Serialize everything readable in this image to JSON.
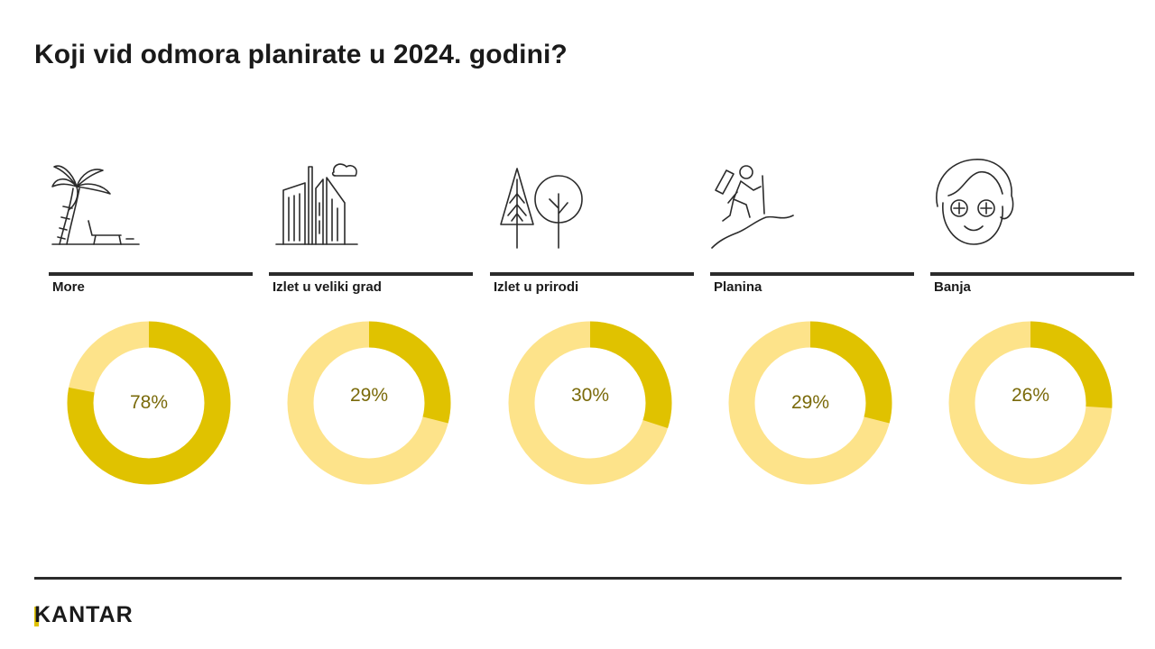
{
  "title": "Koji vid odmora planirate u 2024. godini?",
  "brand": "KANTAR",
  "colors": {
    "primary": "#e0c200",
    "secondary": "#fde38a",
    "percent_text": "#7a6a0a",
    "ink": "#2b2b2b"
  },
  "categories": [
    {
      "label": "More",
      "icon": "palm-beach-icon"
    },
    {
      "label": "Izlet u veliki grad",
      "icon": "city-buildings-icon"
    },
    {
      "label": "Izlet u prirodi",
      "icon": "trees-icon"
    },
    {
      "label": "Planina",
      "icon": "hiker-mountain-icon"
    },
    {
      "label": "Banja",
      "icon": "spa-face-icon"
    }
  ],
  "chart_data": {
    "type": "pie",
    "variant": "donut",
    "title": "Koji vid odmora planirate u 2024. godini?",
    "categories": [
      "More",
      "Izlet u veliki grad",
      "Izlet u prirodi",
      "Planina",
      "Banja"
    ],
    "values": [
      78,
      29,
      30,
      29,
      26
    ],
    "value_labels": [
      "78%",
      "29%",
      "30%",
      "29%",
      "26%"
    ],
    "unit": "%"
  }
}
